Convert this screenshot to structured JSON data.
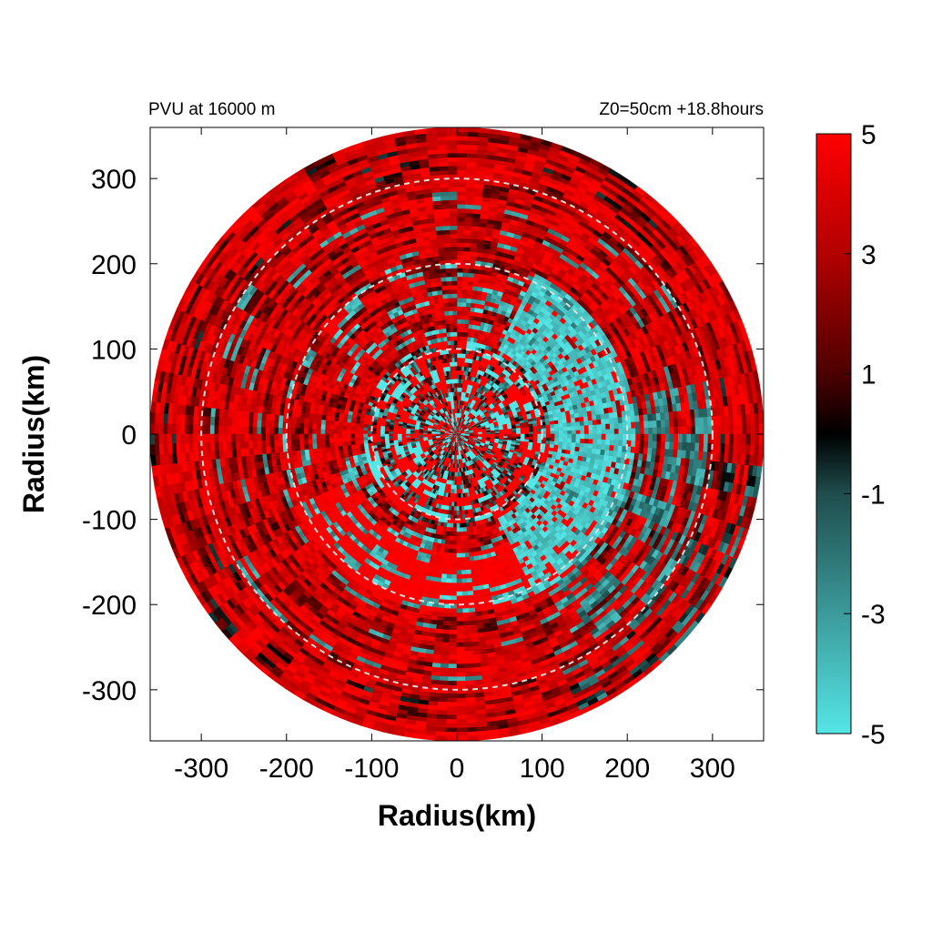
{
  "chart_data": {
    "type": "heatmap",
    "title_left": "PVU at 16000 m",
    "title_right": "Z0=50cm  +18.8hours",
    "xlabel": "Radius(km)",
    "ylabel": "Radius(km)",
    "xlim": [
      -360,
      360
    ],
    "ylim": [
      -360,
      360
    ],
    "xticks": [
      -300,
      -200,
      -100,
      0,
      100,
      200,
      300
    ],
    "yticks": [
      -300,
      -200,
      -100,
      0,
      100,
      200,
      300
    ],
    "domain_radius_km": 360,
    "range_rings_km": [
      100,
      200,
      300
    ],
    "colorbar": {
      "min": -5,
      "max": 5,
      "ticks": [
        5,
        3,
        1,
        -1,
        -3,
        -5
      ],
      "colors": [
        {
          "value": -5,
          "color": "#55e6e6"
        },
        {
          "value": -3,
          "color": "#3c9a9a"
        },
        {
          "value": -1,
          "color": "#1f4d4d"
        },
        {
          "value": 0,
          "color": "#000000"
        },
        {
          "value": 1,
          "color": "#4d0000"
        },
        {
          "value": 3,
          "color": "#b30000"
        },
        {
          "value": 5,
          "color": "#ff0000"
        }
      ]
    },
    "field_features": [
      {
        "description_value": 5,
        "region": "outer annulus 200-360 km and southern sector"
      },
      {
        "description_value": -5,
        "region": "eastern sector 50-200 km, scattered cyan patches inside 200 km"
      },
      {
        "description_value": 1,
        "region": "mixed dark filaments near center"
      }
    ]
  }
}
